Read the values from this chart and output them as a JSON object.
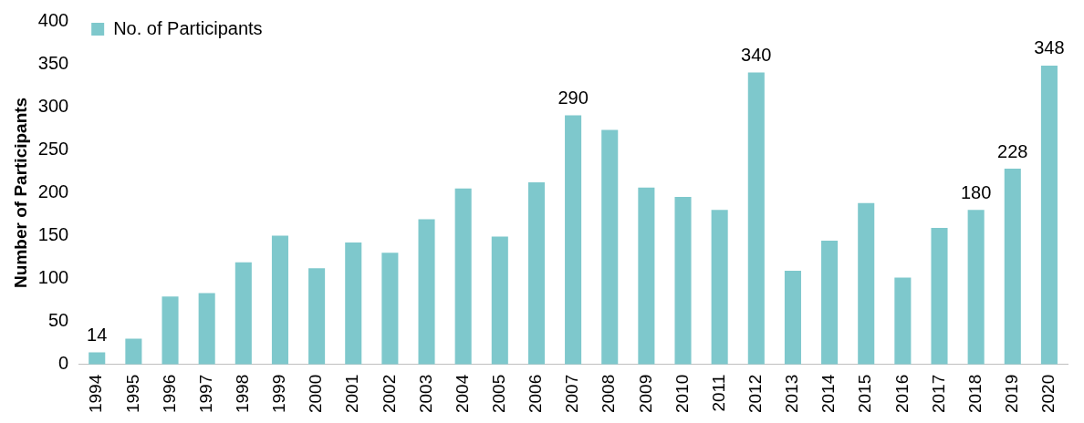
{
  "chart_data": {
    "type": "bar",
    "ylabel": "Number of Participants",
    "categories": [
      "1994",
      "1995",
      "1996",
      "1997",
      "1998",
      "1999",
      "2000",
      "2001",
      "2002",
      "2003",
      "2004",
      "2005",
      "2006",
      "2007",
      "2008",
      "2009",
      "2010",
      "2011",
      "2012",
      "2013",
      "2014",
      "2015",
      "2016",
      "2017",
      "2018",
      "2019",
      "2020"
    ],
    "series": [
      {
        "name": "No. of Participants",
        "color": "#7ec8cc",
        "values": [
          14,
          30,
          79,
          83,
          119,
          150,
          112,
          142,
          130,
          169,
          205,
          149,
          212,
          290,
          273,
          206,
          195,
          180,
          340,
          109,
          144,
          188,
          101,
          159,
          180,
          228,
          348
        ],
        "value_labels": [
          "14",
          null,
          null,
          null,
          null,
          null,
          null,
          null,
          null,
          null,
          null,
          null,
          null,
          "290",
          null,
          null,
          null,
          null,
          "340",
          null,
          null,
          null,
          null,
          null,
          "180",
          "228",
          "348"
        ]
      }
    ],
    "ylim": [
      0,
      400
    ],
    "yticks": [
      0,
      50,
      100,
      150,
      200,
      250,
      300,
      350,
      400
    ],
    "grid": false,
    "legend": "top left"
  }
}
